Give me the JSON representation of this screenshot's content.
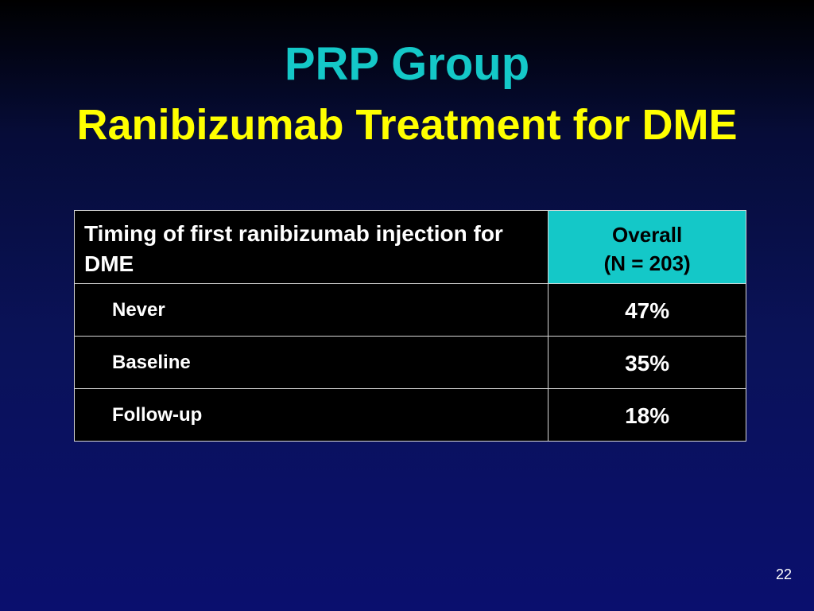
{
  "slide": {
    "title_line1": "PRP Group",
    "title_line2": "Ranibizumab Treatment for DME",
    "page_number": "22"
  },
  "table": {
    "header": {
      "label": "Timing of first ranibizumab injection for DME",
      "value_line1": "Overall",
      "value_line2": "(N = 203)"
    },
    "rows": [
      {
        "label": "Never",
        "value": "47%"
      },
      {
        "label": "Baseline",
        "value": "35%"
      },
      {
        "label": "Follow-up",
        "value": "18%"
      }
    ]
  },
  "colors": {
    "title_line1": "#14c8c8",
    "title_line2": "#ffff00",
    "header_highlight": "#14c8c8",
    "table_background": "#000000",
    "background": "#0a1258"
  }
}
